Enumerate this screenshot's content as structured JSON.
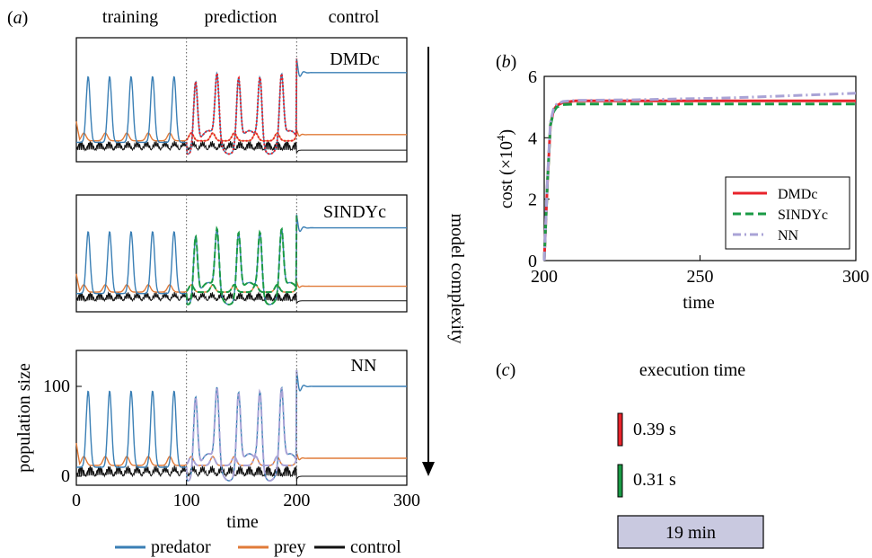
{
  "chart_data": [
    {
      "panel": "(a)",
      "type": "line",
      "phases": [
        "training",
        "prediction",
        "control"
      ],
      "side_label": "model complexity",
      "xlabel": "time",
      "ylabel": "population size",
      "x_ticks": [
        0,
        100,
        200,
        300
      ],
      "y_ticks": [
        0,
        100
      ],
      "xlim": [
        0,
        300
      ],
      "ylim": [
        -10,
        140
      ],
      "phase_boundaries": [
        100,
        200
      ],
      "legend": [
        {
          "label": "predator",
          "color": "#3a7fb5"
        },
        {
          "label": "prey",
          "color": "#e07b39"
        },
        {
          "label": "control",
          "color": "#111111"
        }
      ],
      "subplots": [
        {
          "model": "DMDc",
          "prediction_color": "#e8232b",
          "prediction_style": "dotted"
        },
        {
          "model": "SINDYc",
          "prediction_color": "#1a9a45",
          "prediction_style": "dashed"
        },
        {
          "model": "NN",
          "prediction_color": "#a9a3d6",
          "prediction_style": "dashdot"
        }
      ],
      "predator_setpoint": 100,
      "prey_setpoint": 20
    },
    {
      "panel": "(b)",
      "type": "line",
      "xlabel": "time",
      "ylabel": "cost (×10",
      "ylabel_sup": "4",
      "ylabel_end": ")",
      "xlim": [
        200,
        300
      ],
      "ylim": [
        0,
        6
      ],
      "x_ticks": [
        200,
        250,
        300
      ],
      "y_ticks": [
        0,
        2,
        4,
        6
      ],
      "legend_position": "lower-right",
      "series": [
        {
          "name": "DMDc",
          "color": "#e8232b",
          "style": "solid",
          "x": [
            200,
            201,
            202,
            203,
            204,
            206,
            210,
            230,
            260,
            300
          ],
          "y": [
            0,
            2.5,
            4.4,
            4.9,
            5.05,
            5.15,
            5.2,
            5.2,
            5.2,
            5.2
          ]
        },
        {
          "name": "SINDYc",
          "color": "#1a9a45",
          "style": "dashed",
          "x": [
            200,
            201,
            202,
            203,
            204,
            206,
            210,
            230,
            260,
            300
          ],
          "y": [
            0,
            2.5,
            4.4,
            4.85,
            5.0,
            5.08,
            5.1,
            5.1,
            5.1,
            5.1
          ]
        },
        {
          "name": "NN",
          "color": "#a9a3d6",
          "style": "dashdot",
          "x": [
            200,
            201,
            202,
            203,
            204,
            206,
            210,
            230,
            260,
            300
          ],
          "y": [
            0,
            2.6,
            4.5,
            4.95,
            5.1,
            5.18,
            5.22,
            5.24,
            5.3,
            5.45
          ]
        }
      ]
    },
    {
      "panel": "(c)",
      "type": "bar",
      "title": "execution time",
      "bars": [
        {
          "label": "0.39 s",
          "color": "#e8232b",
          "seconds": 0.39
        },
        {
          "label": "0.31 s",
          "color": "#1a9a45",
          "seconds": 0.31
        },
        {
          "label": "19 min",
          "color": "#c9c9e0",
          "seconds": 1140
        }
      ]
    }
  ]
}
